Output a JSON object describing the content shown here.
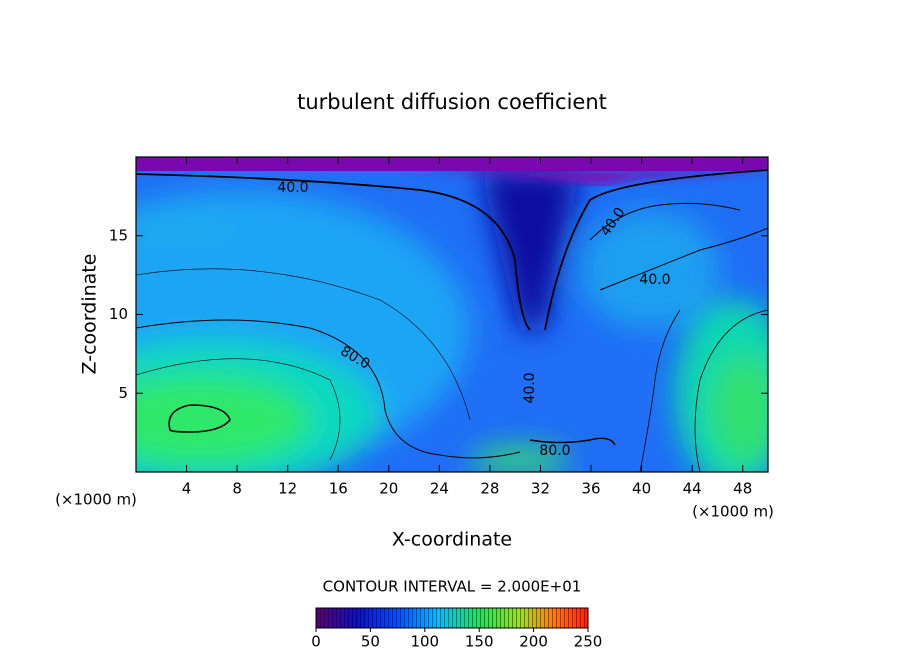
{
  "chart_data": {
    "type": "contour",
    "title": "turbulent diffusion coefficient",
    "x_label": "X-coordinate",
    "y_label": "Z-coordinate",
    "x_unit": "(×1000 m)",
    "xlim": [
      0,
      50
    ],
    "xticks": [
      4,
      8,
      12,
      16,
      20,
      24,
      28,
      32,
      36,
      40,
      44,
      48
    ],
    "ylim": [
      0,
      20
    ],
    "yticks": [
      5,
      10,
      15
    ],
    "contour_labels": [
      "40.0",
      "40.0",
      "40.0",
      "80.0",
      "40.0",
      "80.0"
    ],
    "contour_interval_label": "CONTOUR INTERVAL = 2.000E+01",
    "colorbar_lim": [
      0,
      250
    ],
    "colorbar_ticks": [
      0,
      50,
      100,
      150,
      200,
      250
    ]
  }
}
